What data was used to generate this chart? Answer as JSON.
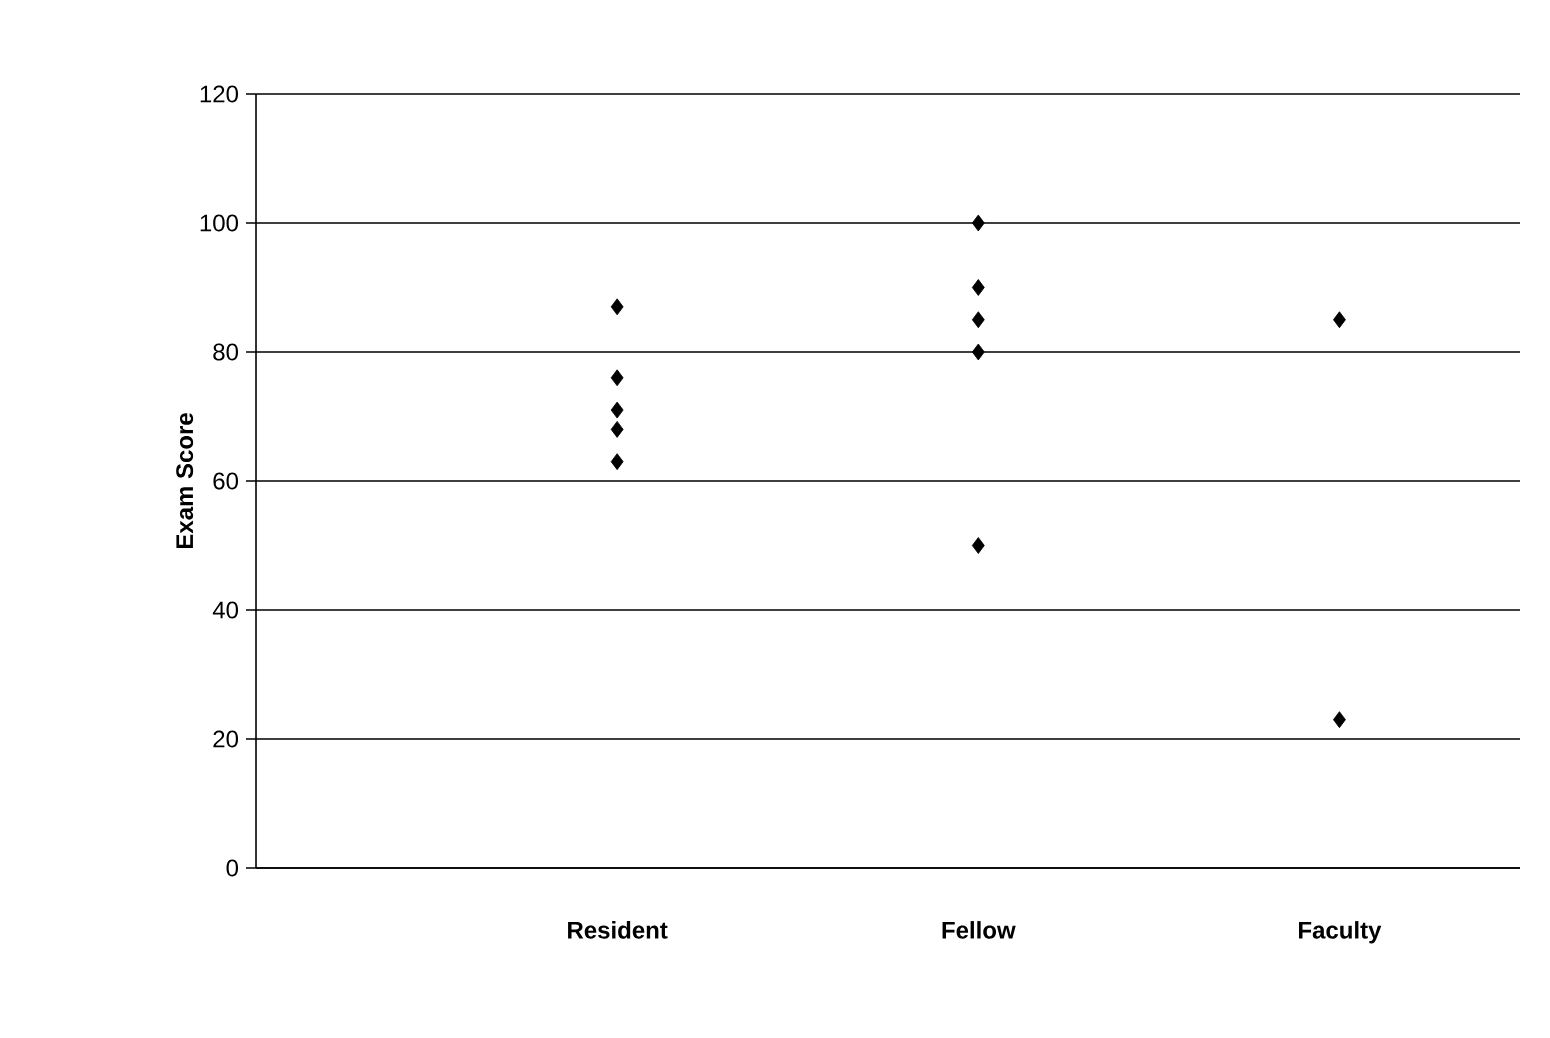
{
  "chart_data": {
    "type": "scatter",
    "ylabel": "Exam Score",
    "categories": [
      "Resident",
      "Fellow",
      "Faculty"
    ],
    "series": [
      {
        "color": "#000000",
        "x": [
          "Resident",
          "Resident",
          "Resident",
          "Resident",
          "Resident",
          "Fellow",
          "Fellow",
          "Fellow",
          "Fellow",
          "Fellow",
          "Faculty",
          "Faculty"
        ],
        "values": [
          87,
          76,
          71,
          68,
          63,
          100,
          90,
          85,
          80,
          50,
          85,
          23
        ]
      }
    ],
    "marker": "diamond",
    "ylim": [
      0,
      120
    ],
    "yticks": [
      0,
      20,
      40,
      60,
      80,
      100,
      120
    ],
    "grid": "y"
  }
}
